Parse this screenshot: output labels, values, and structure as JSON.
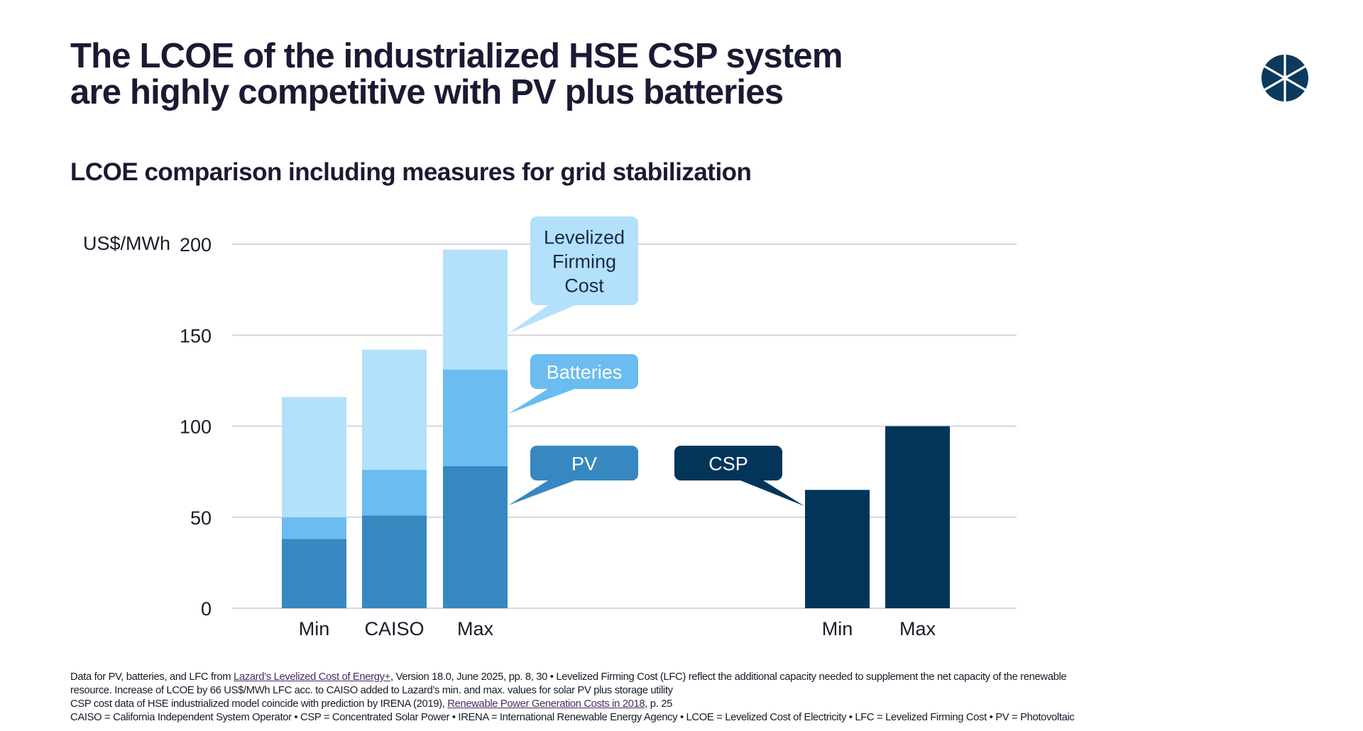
{
  "header": {
    "title_lines": [
      "The LCOE of the industrialized HSE CSP system",
      "are highly competitive with PV plus batteries"
    ],
    "subtitle": "LCOE comparison including measures for grid stabilization",
    "logo_icon": "segmented-circle-logo"
  },
  "colors": {
    "lfc": "#b3e0fb",
    "batteries": "#6bbcf0",
    "pv": "#3788c0",
    "csp": "#03355a",
    "grid": "#d6d6e0",
    "text": "#1a1a33"
  },
  "chart_data": {
    "type": "bar",
    "stacked": true,
    "title": "LCOE comparison including measures for grid stabilization",
    "ylabel": "US$/MWh",
    "xlabel": "",
    "ylim": [
      0,
      200
    ],
    "yticks": [
      0,
      50,
      100,
      150,
      200
    ],
    "grid": true,
    "groups": [
      {
        "name": "PV plus batteries",
        "categories": [
          "Min",
          "CAISO",
          "Max"
        ],
        "series": [
          {
            "name": "PV",
            "values": [
              38,
              51,
              78
            ]
          },
          {
            "name": "Batteries",
            "values": [
              12,
              25,
              53
            ]
          },
          {
            "name": "Levelized Firming Cost",
            "values": [
              66,
              66,
              66
            ]
          }
        ],
        "totals": [
          116,
          142,
          197
        ]
      },
      {
        "name": "CSP",
        "categories": [
          "Min",
          "Max"
        ],
        "series": [
          {
            "name": "CSP",
            "values": [
              65,
              100
            ]
          }
        ]
      }
    ],
    "callouts": [
      {
        "label_lines": [
          "Levelized",
          "Firming",
          "Cost"
        ],
        "series": "Levelized Firming Cost"
      },
      {
        "label_lines": [
          "Batteries"
        ],
        "series": "Batteries"
      },
      {
        "label_lines": [
          "PV"
        ],
        "series": "PV"
      },
      {
        "label_lines": [
          "CSP"
        ],
        "series": "CSP"
      }
    ]
  },
  "footer": {
    "line1_pre": "Data for PV, batteries, and LFC from ",
    "line1_link": "Lazard’s Levelized Cost of Energy+",
    "line1_post": ", Version 18.0, June 2025, pp. 8, 30 • Levelized Firming Cost (LFC) reflect the additional capacity needed to supplement the net capacity of the renewable",
    "line2": "resource. Increase of LCOE by 66 US$/MWh LFC acc. to CAISO added to Lazard’s min. and max. values for solar PV plus storage utility",
    "line3_pre": "CSP cost data of HSE industrialized model coincide with prediction by IRENA (2019), ",
    "line3_link": "Renewable Power Generation Costs in 2018",
    "line3_post": ", p. 25",
    "line4": "CAISO = California Independent System Operator • CSP = Concentrated Solar Power • IRENA = International Renewable Energy Agency • LCOE = Levelized Cost of Electricity • LFC = Levelized Firming Cost • PV = Photovoltaic"
  }
}
